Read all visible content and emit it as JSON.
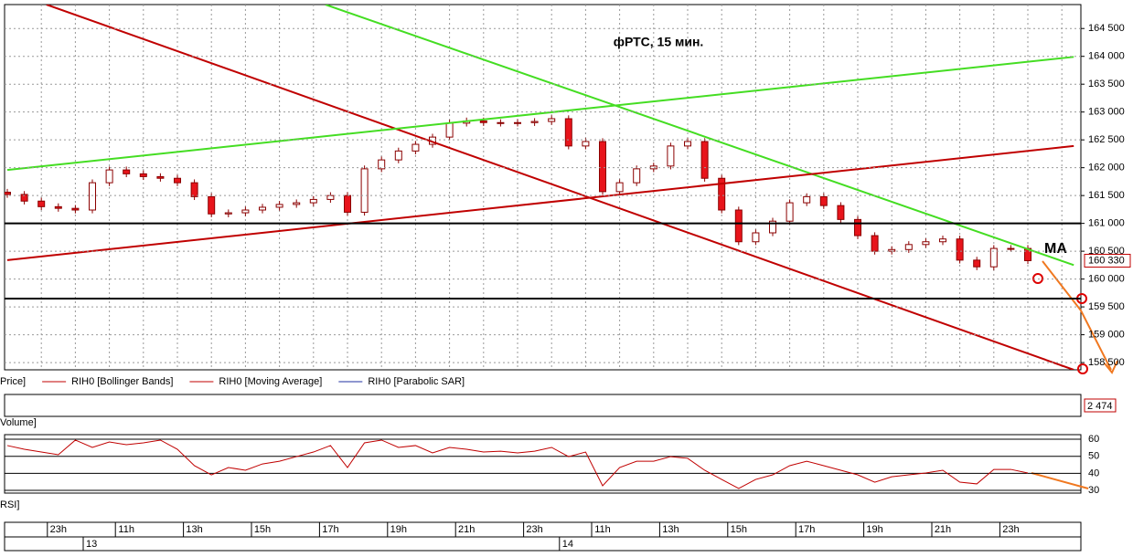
{
  "chart_data": [
    {
      "type": "candlestick",
      "title": "фРТС,  15 мин.",
      "annotation": "MA",
      "categories": [
        null,
        null,
        null,
        "23h",
        null,
        null,
        null,
        "11h",
        null,
        null,
        null,
        "13h",
        null,
        null,
        null,
        "15h",
        null,
        null,
        null,
        "17h",
        null,
        null,
        null,
        "19h",
        null,
        null,
        null,
        "21h",
        null,
        null,
        null,
        "23h",
        null,
        null,
        null,
        "11h",
        null,
        null,
        null,
        "13h",
        null,
        null,
        null,
        "15h",
        null,
        null,
        null,
        "17h",
        null,
        null,
        null,
        "19h",
        null,
        null,
        null,
        "21h",
        null,
        null,
        null,
        "23h",
        null
      ],
      "days": [
        null,
        null,
        null,
        null,
        null,
        "13",
        null,
        null,
        null,
        null,
        null,
        null,
        null,
        null,
        null,
        null,
        null,
        null,
        null,
        null,
        null,
        null,
        null,
        null,
        null,
        null,
        null,
        null,
        null,
        null,
        null,
        null,
        null,
        "14",
        null,
        null,
        null,
        null,
        null,
        null,
        null,
        null,
        null,
        null,
        null,
        null,
        null,
        null,
        null,
        null,
        null,
        null,
        null,
        null,
        null,
        null,
        null,
        null,
        null,
        null,
        null
      ],
      "open": [
        161560,
        161520,
        161400,
        161300,
        161270,
        161240,
        161730,
        161960,
        161890,
        161840,
        161810,
        161730,
        161480,
        161170,
        161190,
        161240,
        161290,
        161340,
        161370,
        161430,
        161500,
        161200,
        161980,
        162140,
        162300,
        162420,
        162550,
        162800,
        162840,
        162810,
        162800,
        162810,
        162830,
        162880,
        162390,
        162470,
        161570,
        161730,
        161980,
        162030,
        162390,
        162470,
        161810,
        161240,
        160670,
        160830,
        161040,
        161370,
        161480,
        161320,
        161070,
        160780,
        160500,
        160530,
        160620,
        160670,
        160720,
        160340,
        160220,
        160550,
        160550
      ],
      "high": [
        161620,
        161580,
        161460,
        161360,
        161330,
        161790,
        162020,
        162020,
        161950,
        161900,
        161870,
        161790,
        161540,
        161250,
        161300,
        161350,
        161400,
        161430,
        161490,
        161560,
        161560,
        162040,
        162200,
        162360,
        162480,
        162610,
        162860,
        162900,
        162900,
        162870,
        162870,
        162890,
        162940,
        162940,
        162530,
        162530,
        161790,
        162040,
        162090,
        162450,
        162530,
        162530,
        161870,
        161300,
        160890,
        161100,
        161430,
        161540,
        161540,
        161380,
        161130,
        160840,
        160590,
        160680,
        160730,
        160780,
        160780,
        160400,
        160610,
        160610,
        160610
      ],
      "low": [
        161460,
        161340,
        161240,
        161210,
        161180,
        161180,
        161670,
        161830,
        161780,
        161750,
        161670,
        161420,
        161110,
        161110,
        161130,
        161180,
        161230,
        161280,
        161310,
        161370,
        161140,
        161140,
        161920,
        162080,
        162240,
        162360,
        162490,
        162740,
        162750,
        162740,
        162740,
        162750,
        162770,
        162330,
        162330,
        161510,
        161510,
        161670,
        161920,
        161970,
        162330,
        161750,
        161180,
        160610,
        160610,
        160770,
        160980,
        161310,
        161260,
        161010,
        160720,
        160440,
        160440,
        160470,
        160560,
        160610,
        160280,
        160160,
        160160,
        160490,
        160270
      ],
      "close": [
        161520,
        161400,
        161300,
        161270,
        161240,
        161730,
        161960,
        161890,
        161840,
        161810,
        161730,
        161480,
        161170,
        161190,
        161240,
        161290,
        161340,
        161370,
        161430,
        161500,
        161200,
        161980,
        162140,
        162300,
        162420,
        162550,
        162800,
        162840,
        162810,
        162800,
        162810,
        162830,
        162880,
        162390,
        162470,
        161570,
        161730,
        161980,
        162030,
        162390,
        162470,
        161810,
        161240,
        160670,
        160830,
        161040,
        161370,
        161480,
        161320,
        161070,
        160780,
        160500,
        160530,
        160620,
        160670,
        160720,
        160340,
        160220,
        160550,
        160550,
        160330
      ],
      "up_color": "#ffffff",
      "down_color": "#e8141b",
      "wick_color": "#8b0000",
      "ylim": [
        158370,
        164930
      ],
      "yticks": [
        {
          "value": 158500,
          "label": "158 500"
        },
        {
          "value": 159000,
          "label": "159 000"
        },
        {
          "value": 159500,
          "label": "159 500"
        },
        {
          "value": 160000,
          "label": "160 000"
        },
        {
          "value": 160500,
          "label": "160 500"
        },
        {
          "value": 161000,
          "label": "161 000"
        },
        {
          "value": 161500,
          "label": "161 500"
        },
        {
          "value": 162000,
          "label": "162 000"
        },
        {
          "value": 162500,
          "label": "162 500"
        },
        {
          "value": 163000,
          "label": "163 000"
        },
        {
          "value": 163500,
          "label": "163 500"
        },
        {
          "value": 164000,
          "label": "164 000"
        },
        {
          "value": 164500,
          "label": "164 500"
        }
      ],
      "last_price": {
        "value": 160330,
        "label": "160 330"
      },
      "grid": true,
      "hlines": [
        161000,
        159650
      ],
      "hline_color": "#000000",
      "trendlines": [
        {
          "color": "#c00000",
          "x": [
            2.3,
            62.7
          ],
          "y": [
            164930,
            158370
          ]
        },
        {
          "color": "#44dd22",
          "x": [
            18.7,
            62.7
          ],
          "y": [
            164930,
            160250
          ]
        },
        {
          "color": "#44dd22",
          "x": [
            0,
            62.7
          ],
          "y": [
            161960,
            163990
          ]
        },
        {
          "color": "#c00000",
          "x": [
            0,
            62.7
          ],
          "y": [
            160340,
            162390
          ]
        }
      ],
      "legend": [
        {
          "name": "Price]",
          "color": "#000000"
        },
        {
          "name": "RIH0 [Bollinger Bands]",
          "color": "#c00000"
        },
        {
          "name": "RIH0 [Moving Average]",
          "color": "#c00000"
        },
        {
          "name": "RIH0 [Parabolic SAR]",
          "color": "#1f2fa0"
        }
      ],
      "volume_label": "Volume]",
      "volume_last": {
        "value": 2474,
        "label": "2 474"
      }
    },
    {
      "type": "line",
      "label": "RSI]",
      "color": "#c00000",
      "values": [
        56.3,
        54.1,
        52.5,
        50.9,
        59.5,
        55.2,
        58.4,
        56.8,
        57.9,
        59.5,
        54.1,
        44.5,
        39.1,
        43.4,
        41.8,
        45.5,
        47.1,
        49.8,
        52.5,
        56.3,
        43.4,
        57.9,
        59.5,
        55.2,
        56.3,
        52.0,
        55.2,
        54.1,
        52.5,
        53.0,
        52.0,
        53.0,
        55.2,
        49.8,
        52.5,
        32.7,
        43.4,
        47.1,
        47.1,
        49.8,
        48.8,
        41.8,
        36.4,
        31.1,
        36.4,
        39.1,
        44.5,
        47.1,
        44.5,
        41.8,
        39.1,
        34.8,
        38.0,
        39.1,
        40.2,
        41.8,
        34.8,
        33.8,
        42.3,
        42.3,
        40.2
      ],
      "ylim": [
        28.4,
        62.7
      ],
      "yticks": [
        30,
        40,
        50,
        60
      ]
    }
  ]
}
